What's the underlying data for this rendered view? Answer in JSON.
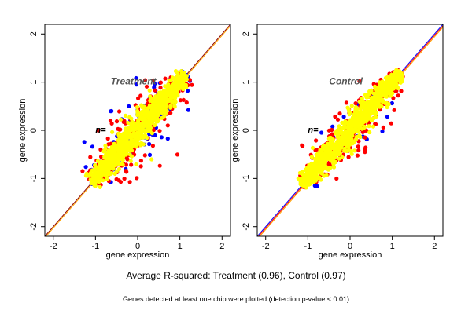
{
  "chart_data": [
    {
      "type": "scatter",
      "title": "Treatment",
      "n_label": "n=",
      "xlabel": "gene expression",
      "ylabel": "gene expression",
      "xlim": [
        -2.2,
        2.2
      ],
      "ylim": [
        -2.2,
        2.2
      ],
      "xticks": [
        -2,
        -1,
        0,
        1,
        2
      ],
      "yticks": [
        -2,
        -1,
        0,
        1,
        2
      ],
      "grid": false,
      "diagonal_lines": [
        {
          "color": "#8B0000",
          "slope": 1.0,
          "intercept": 0.0
        },
        {
          "color": "#FFA500",
          "slope": 1.0,
          "intercept": -0.03
        }
      ],
      "point_cloud": {
        "x_range": [
          -1.1,
          1.15
        ],
        "y_range": [
          -1.15,
          1.2
        ],
        "spread": 0.18,
        "outlier_spread": 0.45
      },
      "series": [
        {
          "color": "#0000FF",
          "share": 0.15
        },
        {
          "color": "#FF0000",
          "share": 0.25
        },
        {
          "color": "#FFFF00",
          "share": 0.6
        }
      ]
    },
    {
      "type": "scatter",
      "title": "Control",
      "n_label": "n=",
      "xlabel": "gene expression",
      "ylabel": "gene expression",
      "xlim": [
        -2.2,
        2.2
      ],
      "ylim": [
        -2.2,
        2.2
      ],
      "xticks": [
        -2,
        -1,
        0,
        1,
        2
      ],
      "yticks": [
        -2,
        -1,
        0,
        1,
        2
      ],
      "grid": false,
      "diagonal_lines": [
        {
          "color": "#0000FF",
          "slope": 1.0,
          "intercept": 0.0
        },
        {
          "color": "#FF0000",
          "slope": 1.0,
          "intercept": -0.03
        },
        {
          "color": "#FFA500",
          "slope": 1.0,
          "intercept": -0.06
        }
      ],
      "point_cloud": {
        "x_range": [
          -1.15,
          1.2
        ],
        "y_range": [
          -1.15,
          1.2
        ],
        "spread": 0.17,
        "outlier_spread": 0.4
      },
      "series": [
        {
          "color": "#0000FF",
          "share": 0.03
        },
        {
          "color": "#FF0000",
          "share": 0.27
        },
        {
          "color": "#FFFF00",
          "share": 0.7
        }
      ]
    }
  ],
  "footer": {
    "main": "Average R-squared: Treatment (0.96), Control (0.97)",
    "note": "Genes detected at least one chip were plotted (detection p-value < 0.01)"
  }
}
